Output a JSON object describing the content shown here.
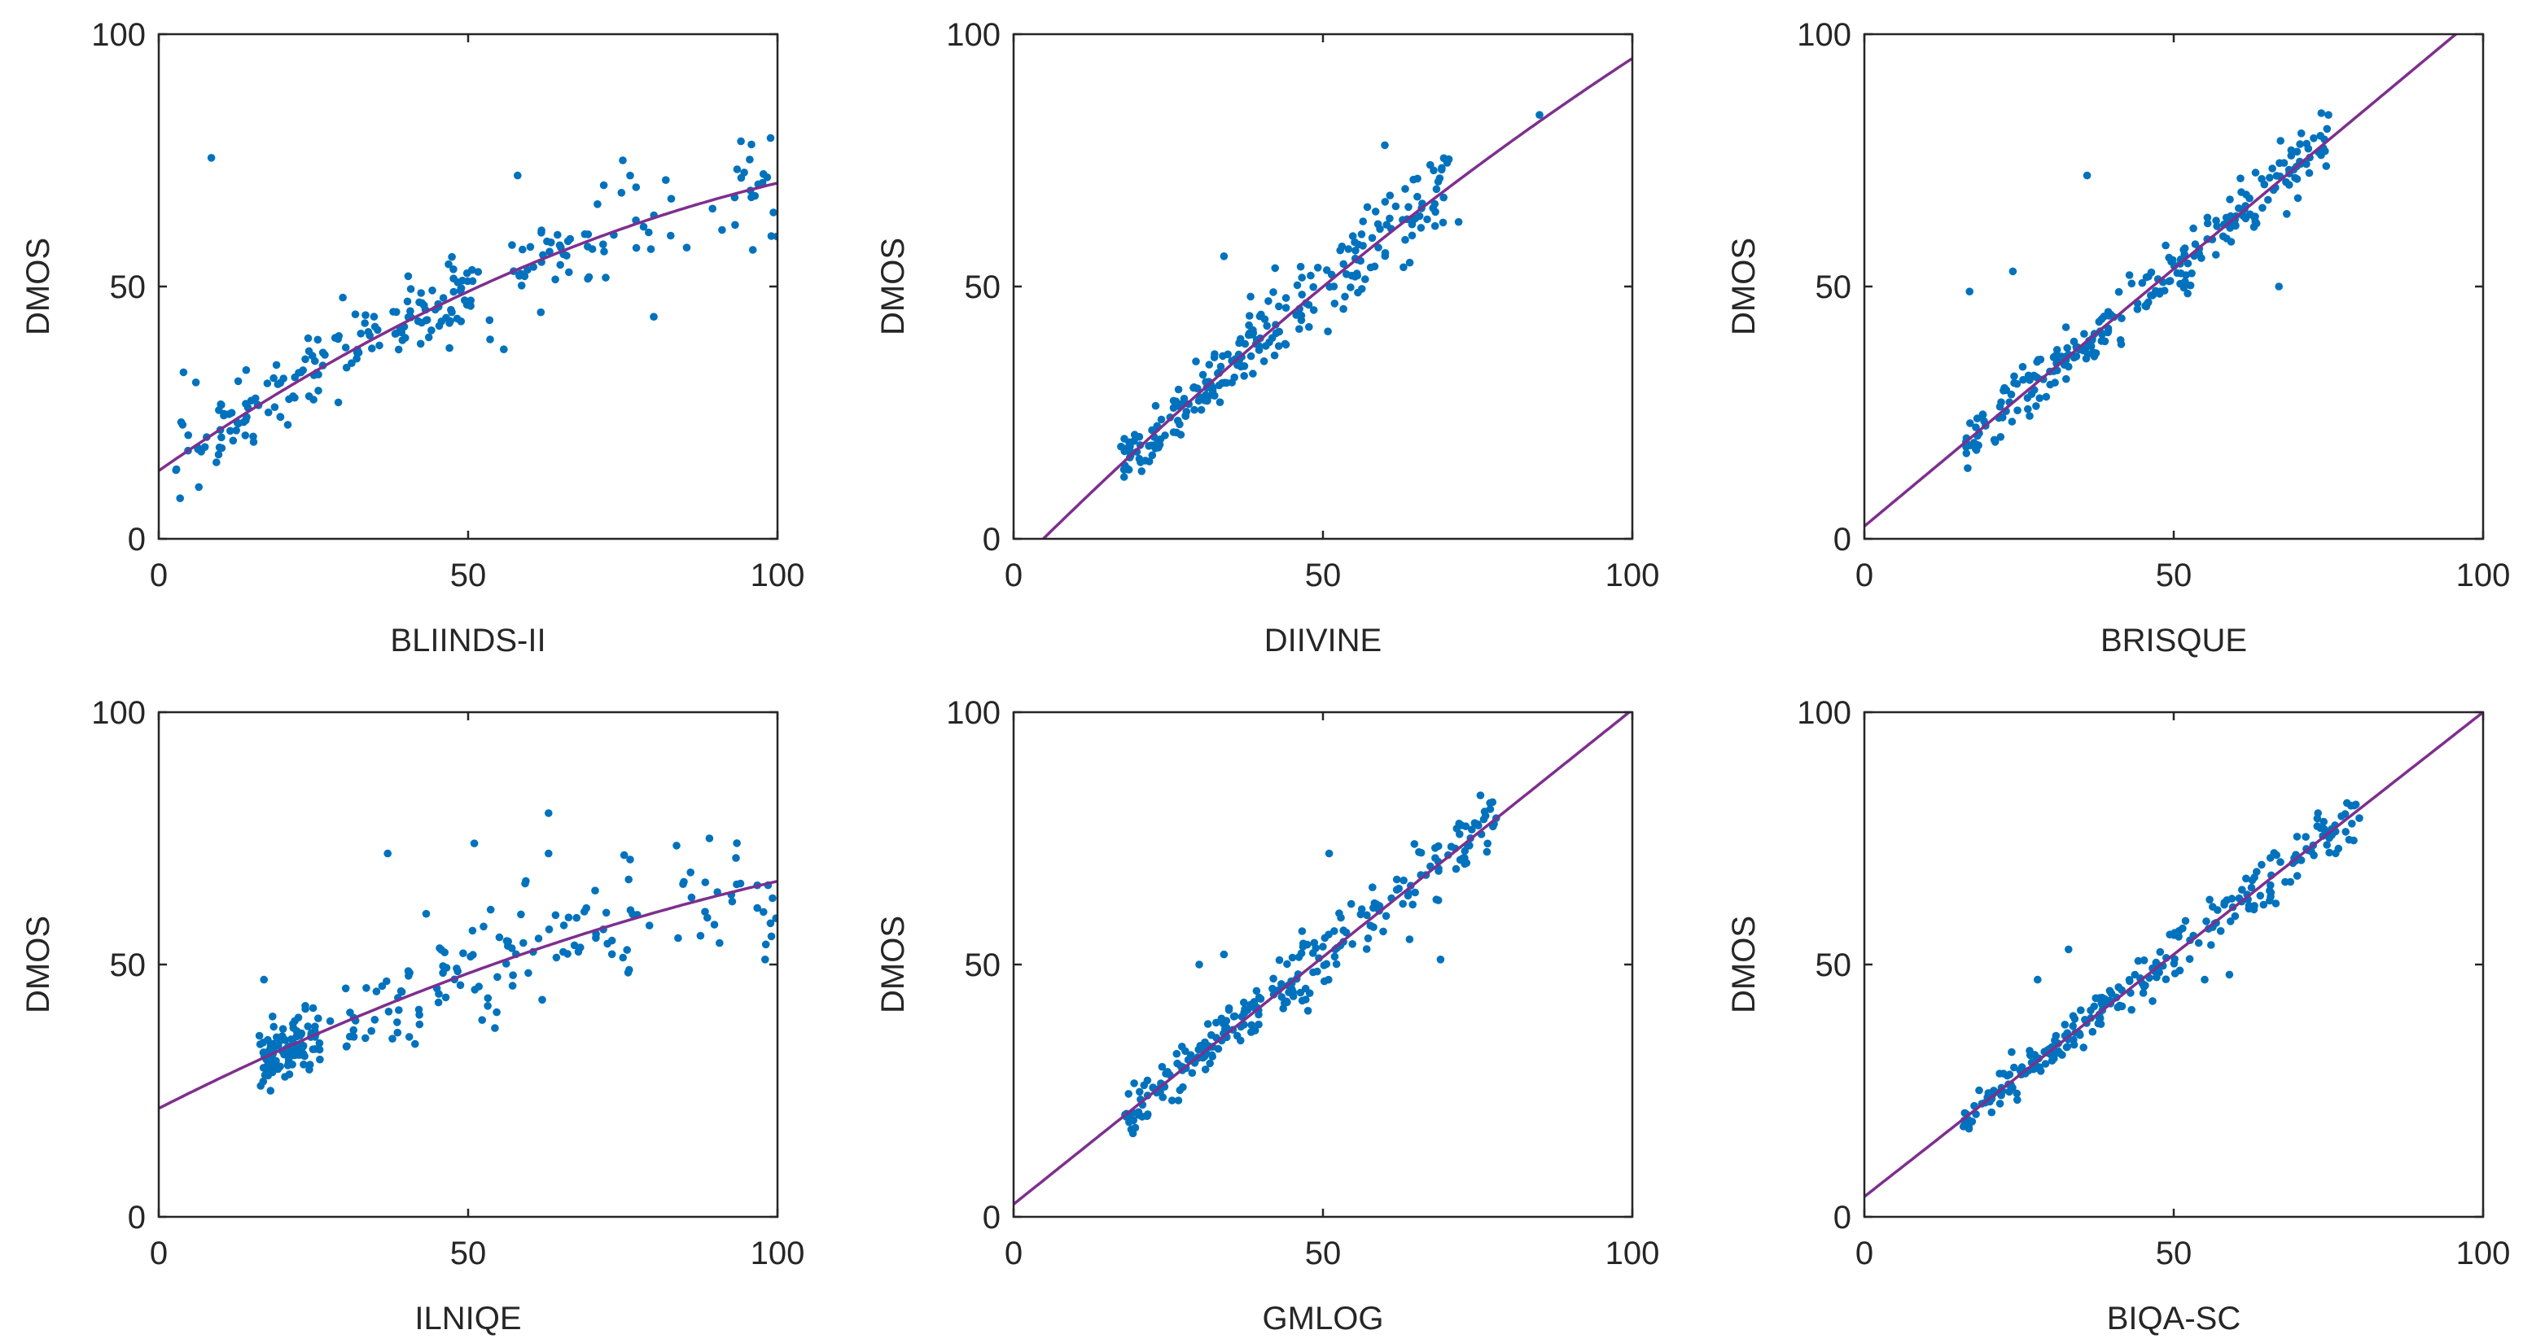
{
  "colors": {
    "points": "#0072BD",
    "fit_line": "#7E2F8E",
    "axes": "#262626"
  },
  "chart_data": [
    {
      "type": "scatter",
      "xlabel": "BLIINDS-II",
      "ylabel": "DMOS",
      "xlim": [
        0,
        100
      ],
      "ylim": [
        0,
        100
      ],
      "xticks": [
        "0",
        "50",
        "100"
      ],
      "yticks": [
        "0",
        "50",
        "100"
      ],
      "fit": {
        "kind": "quadratic",
        "coef": [
          13.5,
          0.85,
          -0.0028
        ]
      },
      "seed": 11,
      "clusters": [
        {
          "n": 150,
          "xmin": 0,
          "xmax": 50,
          "noise": 5.5
        },
        {
          "n": 90,
          "xmin": 45,
          "xmax": 100,
          "noise": 8
        }
      ],
      "outliers": [
        [
          8.5,
          75.5
        ],
        [
          4,
          33
        ],
        [
          6,
          31
        ],
        [
          58,
          72
        ],
        [
          75,
          75
        ],
        [
          80,
          44
        ],
        [
          99,
          60
        ]
      ]
    },
    {
      "type": "scatter",
      "xlabel": "DIIVINE",
      "ylabel": "DMOS",
      "xlim": [
        0,
        100
      ],
      "ylim": [
        0,
        100
      ],
      "xticks": [
        "0",
        "50",
        "100"
      ],
      "yticks": [
        "0",
        "50",
        "100"
      ],
      "fit": {
        "kind": "quadratic",
        "coef": [
          -5.8,
          1.22,
          -0.0021
        ]
      },
      "seed": 23,
      "clusters": [
        {
          "n": 120,
          "xmin": 17,
          "xmax": 40,
          "noise": 4
        },
        {
          "n": 130,
          "xmin": 38,
          "xmax": 72,
          "noise": 6
        }
      ],
      "outliers": [
        [
          85,
          84
        ],
        [
          34,
          56
        ],
        [
          60,
          78
        ]
      ]
    },
    {
      "type": "scatter",
      "xlabel": "BRISQUE",
      "ylabel": "DMOS",
      "xlim": [
        0,
        100
      ],
      "ylim": [
        0,
        100
      ],
      "xticks": [
        "0",
        "50",
        "100"
      ],
      "yticks": [
        "0",
        "50",
        "100"
      ],
      "fit": {
        "kind": "linear",
        "coef": [
          2.5,
          1.02
        ]
      },
      "seed": 37,
      "clusters": [
        {
          "n": 110,
          "xmin": 16,
          "xmax": 40,
          "noise": 3.5
        },
        {
          "n": 140,
          "xmin": 38,
          "xmax": 75,
          "noise": 4.5
        }
      ],
      "outliers": [
        [
          36,
          72
        ],
        [
          17,
          49
        ],
        [
          24,
          53
        ],
        [
          75,
          84
        ],
        [
          67,
          50
        ]
      ]
    },
    {
      "type": "scatter",
      "xlabel": "ILNIQE",
      "ylabel": "DMOS",
      "xlim": [
        0,
        100
      ],
      "ylim": [
        0,
        100
      ],
      "xticks": [
        "0",
        "50",
        "100"
      ],
      "yticks": [
        "0",
        "50",
        "100"
      ],
      "fit": {
        "kind": "quadratic",
        "coef": [
          21.5,
          0.62,
          -0.0017
        ]
      },
      "seed": 53,
      "clusters": [
        {
          "n": 110,
          "xmin": 16,
          "xmax": 26,
          "noise": 4
        },
        {
          "n": 140,
          "xmin": 25,
          "xmax": 100,
          "noise": 9
        }
      ],
      "outliers": [
        [
          63,
          80
        ],
        [
          89,
          75
        ],
        [
          37,
          72
        ],
        [
          51,
          74
        ],
        [
          17,
          47
        ],
        [
          98,
          51
        ],
        [
          63,
          72
        ]
      ]
    },
    {
      "type": "scatter",
      "xlabel": "GMLOG",
      "ylabel": "DMOS",
      "xlim": [
        0,
        100
      ],
      "ylim": [
        0,
        100
      ],
      "xticks": [
        "0",
        "50",
        "100"
      ],
      "yticks": [
        "0",
        "50",
        "100"
      ],
      "fit": {
        "kind": "linear",
        "coef": [
          2.5,
          0.98
        ]
      },
      "seed": 71,
      "clusters": [
        {
          "n": 110,
          "xmin": 18,
          "xmax": 40,
          "noise": 3.5
        },
        {
          "n": 140,
          "xmin": 38,
          "xmax": 78,
          "noise": 5
        }
      ],
      "outliers": [
        [
          77,
          82
        ],
        [
          78,
          79
        ],
        [
          30,
          50
        ],
        [
          34,
          52
        ],
        [
          51,
          72
        ],
        [
          69,
          51
        ],
        [
          64,
          55
        ]
      ]
    },
    {
      "type": "scatter",
      "xlabel": "BIQA-SC",
      "ylabel": "DMOS",
      "xlim": [
        0,
        100
      ],
      "ylim": [
        0,
        100
      ],
      "xticks": [
        "0",
        "50",
        "100"
      ],
      "yticks": [
        "0",
        "50",
        "100"
      ],
      "fit": {
        "kind": "linear",
        "coef": [
          4.0,
          0.96
        ]
      },
      "seed": 89,
      "clusters": [
        {
          "n": 110,
          "xmin": 16,
          "xmax": 40,
          "noise": 3
        },
        {
          "n": 140,
          "xmin": 38,
          "xmax": 80,
          "noise": 3.5
        }
      ],
      "outliers": [
        [
          78,
          82
        ],
        [
          80,
          79
        ],
        [
          28,
          47
        ],
        [
          33,
          53
        ],
        [
          59,
          48
        ],
        [
          55,
          47
        ]
      ]
    }
  ]
}
